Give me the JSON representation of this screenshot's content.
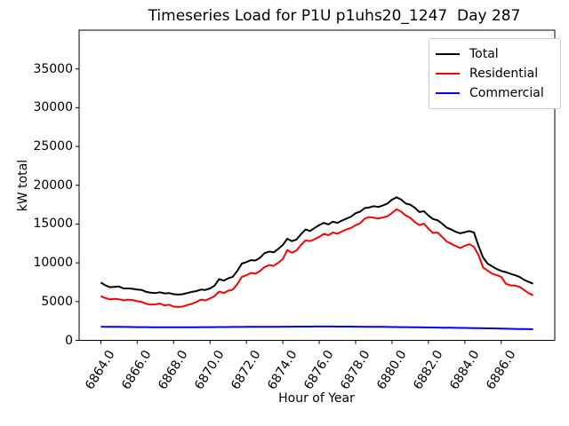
{
  "chart_data": {
    "type": "line",
    "title": "Timeseries Load for P1U p1uhs20_1247  Day 287",
    "xlabel": "Hour of Year",
    "ylabel": "kW total",
    "xlim": [
      6862.81,
      6888.94
    ],
    "ylim": [
      0,
      40000
    ],
    "grid": false,
    "legend_position": "upper-right",
    "x_ticks": [
      6864,
      6866,
      6868,
      6870,
      6872,
      6874,
      6876,
      6878,
      6880,
      6882,
      6884,
      6886
    ],
    "x_tick_labels": [
      "6864.0",
      "6866.0",
      "6868.0",
      "6870.0",
      "6872.0",
      "6874.0",
      "6876.0",
      "6878.0",
      "6880.0",
      "6882.0",
      "6884.0",
      "6886.0"
    ],
    "y_ticks": [
      0,
      5000,
      10000,
      15000,
      20000,
      25000,
      30000,
      35000
    ],
    "y_tick_labels": [
      "0",
      "5000",
      "10000",
      "15000",
      "20000",
      "25000",
      "30000",
      "35000"
    ],
    "x_start": 6864.0,
    "x_step": 0.25,
    "series": [
      {
        "name": "Total",
        "color": "#000000",
        "values": [
          7450,
          7100,
          6850,
          6900,
          6950,
          6700,
          6700,
          6650,
          6550,
          6500,
          6250,
          6150,
          6100,
          6200,
          6050,
          6100,
          5950,
          5900,
          5950,
          6100,
          6250,
          6350,
          6550,
          6500,
          6700,
          7050,
          7900,
          7700,
          8000,
          8200,
          8950,
          9900,
          10100,
          10350,
          10300,
          10650,
          11250,
          11450,
          11350,
          11800,
          12300,
          13100,
          12800,
          13000,
          13700,
          14300,
          14100,
          14500,
          14850,
          15150,
          14950,
          15300,
          15150,
          15450,
          15700,
          15950,
          16400,
          16600,
          17050,
          17150,
          17300,
          17200,
          17400,
          17650,
          18150,
          18450,
          18150,
          17650,
          17500,
          17100,
          16550,
          16650,
          16100,
          15650,
          15500,
          15050,
          14550,
          14300,
          14000,
          13800,
          13950,
          14100,
          13900,
          12200,
          10700,
          9900,
          9550,
          9200,
          8950,
          8800,
          8600,
          8400,
          8200,
          7800,
          7550,
          7300
        ]
      },
      {
        "name": "Residential",
        "color": "#ff0000",
        "values": [
          5700,
          5450,
          5300,
          5350,
          5300,
          5150,
          5250,
          5200,
          5050,
          4950,
          4700,
          4600,
          4650,
          4750,
          4500,
          4600,
          4350,
          4300,
          4350,
          4550,
          4700,
          4950,
          5250,
          5150,
          5400,
          5700,
          6300,
          6100,
          6400,
          6550,
          7250,
          8200,
          8400,
          8700,
          8600,
          8950,
          9450,
          9700,
          9600,
          10000,
          10500,
          11650,
          11300,
          11600,
          12300,
          12900,
          12800,
          13050,
          13350,
          13750,
          13550,
          13900,
          13750,
          14050,
          14300,
          14500,
          14850,
          15100,
          15700,
          15900,
          15800,
          15700,
          15850,
          16000,
          16450,
          16900,
          16600,
          16100,
          15800,
          15250,
          14850,
          15050,
          14400,
          13850,
          13900,
          13350,
          12750,
          12450,
          12150,
          11900,
          12200,
          12400,
          12050,
          11000,
          9400,
          9000,
          8600,
          8400,
          8200,
          7300,
          7100,
          7050,
          6900,
          6500,
          6100,
          5800
        ]
      },
      {
        "name": "Commercial",
        "color": "#0000ff",
        "values": [
          1760,
          1755,
          1750,
          1745,
          1740,
          1730,
          1725,
          1720,
          1710,
          1705,
          1700,
          1695,
          1690,
          1690,
          1685,
          1685,
          1680,
          1680,
          1685,
          1690,
          1690,
          1695,
          1700,
          1700,
          1705,
          1710,
          1715,
          1715,
          1720,
          1725,
          1730,
          1730,
          1735,
          1740,
          1740,
          1745,
          1745,
          1750,
          1755,
          1755,
          1760,
          1765,
          1765,
          1770,
          1770,
          1775,
          1775,
          1780,
          1780,
          1780,
          1780,
          1780,
          1775,
          1775,
          1770,
          1770,
          1765,
          1760,
          1755,
          1750,
          1745,
          1740,
          1735,
          1730,
          1720,
          1715,
          1710,
          1700,
          1695,
          1685,
          1680,
          1670,
          1665,
          1655,
          1650,
          1640,
          1630,
          1625,
          1615,
          1605,
          1600,
          1590,
          1580,
          1570,
          1560,
          1550,
          1540,
          1530,
          1515,
          1505,
          1490,
          1480,
          1465,
          1455,
          1445,
          1425
        ]
      }
    ]
  }
}
